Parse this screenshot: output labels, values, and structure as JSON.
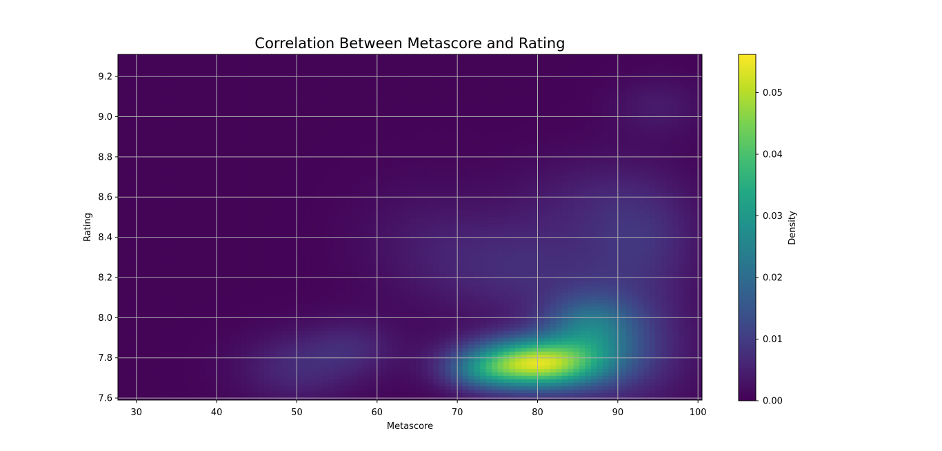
{
  "chart_data": {
    "type": "heatmap",
    "title": "Correlation Between Metascore and Rating",
    "xlabel": "Metascore",
    "ylabel": "Rating",
    "xlim": [
      27.7,
      100.5
    ],
    "ylim": [
      7.59,
      9.31
    ],
    "xticks": [
      "30",
      "40",
      "50",
      "60",
      "70",
      "80",
      "90",
      "100"
    ],
    "yticks": [
      "7.6",
      "7.8",
      "8.0",
      "8.2",
      "8.4",
      "8.6",
      "8.8",
      "9.0",
      "9.2"
    ],
    "grid": true,
    "colormap": "viridis",
    "colorbar": {
      "label": "Density",
      "range": [
        0.0,
        0.0562
      ],
      "ticks": [
        "0.00",
        "0.01",
        "0.02",
        "0.03",
        "0.04",
        "0.05"
      ]
    },
    "density_components": [
      {
        "x": 79.5,
        "y": 7.77,
        "sx": 5.8,
        "sy": 0.085,
        "amp": 0.05
      },
      {
        "x": 86.5,
        "y": 7.95,
        "sx": 4.0,
        "sy": 0.11,
        "amp": 0.016
      },
      {
        "x": 73.0,
        "y": 7.72,
        "sx": 3.0,
        "sy": 0.06,
        "amp": 0.008
      },
      {
        "x": 90.0,
        "y": 7.85,
        "sx": 6.0,
        "sy": 0.2,
        "amp": 0.009
      },
      {
        "x": 78.0,
        "y": 8.25,
        "sx": 8.0,
        "sy": 0.18,
        "amp": 0.0065
      },
      {
        "x": 93.0,
        "y": 8.4,
        "sx": 5.0,
        "sy": 0.22,
        "amp": 0.007
      },
      {
        "x": 50.0,
        "y": 7.75,
        "sx": 5.0,
        "sy": 0.12,
        "amp": 0.006
      },
      {
        "x": 57.0,
        "y": 7.85,
        "sx": 4.0,
        "sy": 0.1,
        "amp": 0.005
      },
      {
        "x": 95.0,
        "y": 9.05,
        "sx": 4.0,
        "sy": 0.1,
        "amp": 0.0035
      },
      {
        "x": 85.0,
        "y": 8.6,
        "sx": 6.0,
        "sy": 0.15,
        "amp": 0.003
      },
      {
        "x": 66.0,
        "y": 8.4,
        "sx": 6.0,
        "sy": 0.2,
        "amp": 0.0025
      }
    ]
  }
}
